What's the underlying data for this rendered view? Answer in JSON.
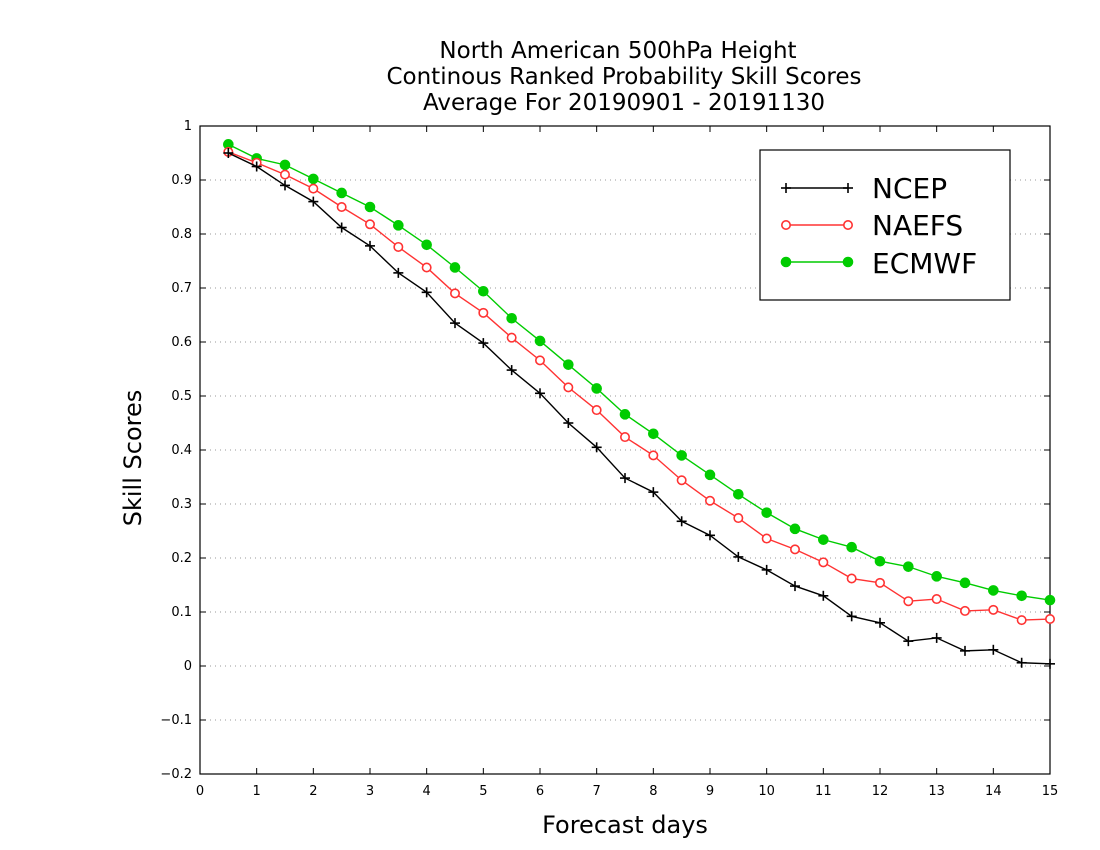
{
  "chart_data": {
    "type": "line",
    "title_lines": [
      "North American 500hPa Height",
      "Continous Ranked Probability Skill Scores",
      "Average For 20190901 - 20191130"
    ],
    "xlabel": "Forecast days",
    "ylabel": "Skill Scores",
    "xlim": [
      0,
      15
    ],
    "ylim": [
      -0.2,
      1
    ],
    "x_ticks": [
      "0",
      "1",
      "2",
      "3",
      "4",
      "5",
      "6",
      "7",
      "8",
      "9",
      "10",
      "11",
      "12",
      "13",
      "14",
      "15"
    ],
    "y_ticks": [
      "-0.2",
      "-0.1",
      "0",
      "0.1",
      "0.2",
      "0.3",
      "0.4",
      "0.5",
      "0.6",
      "0.7",
      "0.8",
      "0.9",
      "1"
    ],
    "grid": "horizontal-dotted",
    "legend_position": "top-right",
    "x": [
      0.5,
      1,
      1.5,
      2,
      2.5,
      3,
      3.5,
      4,
      4.5,
      5,
      5.5,
      6,
      6.5,
      7,
      7.5,
      8,
      8.5,
      9,
      9.5,
      10,
      10.5,
      11,
      11.5,
      12,
      12.5,
      13,
      13.5,
      14,
      14.5,
      15
    ],
    "series": [
      {
        "name": "NCEP",
        "color": "#000000",
        "marker": "plus",
        "values": [
          0.95,
          0.925,
          0.89,
          0.86,
          0.812,
          0.778,
          0.728,
          0.692,
          0.635,
          0.598,
          0.548,
          0.505,
          0.45,
          0.405,
          0.348,
          0.322,
          0.268,
          0.242,
          0.202,
          0.178,
          0.148,
          0.13,
          0.092,
          0.08,
          0.046,
          0.052,
          0.028,
          0.03,
          0.006,
          0.004
        ]
      },
      {
        "name": "NAEFS",
        "color": "#ff3333",
        "marker": "open-circle",
        "values": [
          0.952,
          0.932,
          0.91,
          0.884,
          0.85,
          0.818,
          0.776,
          0.738,
          0.69,
          0.654,
          0.608,
          0.566,
          0.516,
          0.474,
          0.424,
          0.39,
          0.344,
          0.306,
          0.274,
          0.236,
          0.216,
          0.192,
          0.162,
          0.154,
          0.12,
          0.124,
          0.102,
          0.104,
          0.085,
          0.087
        ]
      },
      {
        "name": "ECMWF",
        "color": "#00cc00",
        "marker": "filled-circle",
        "values": [
          0.966,
          0.94,
          0.928,
          0.902,
          0.876,
          0.85,
          0.816,
          0.78,
          0.738,
          0.694,
          0.644,
          0.602,
          0.558,
          0.514,
          0.466,
          0.43,
          0.39,
          0.354,
          0.318,
          0.284,
          0.254,
          0.234,
          0.22,
          0.194,
          0.184,
          0.166,
          0.154,
          0.14,
          0.13,
          0.122
        ]
      }
    ]
  }
}
